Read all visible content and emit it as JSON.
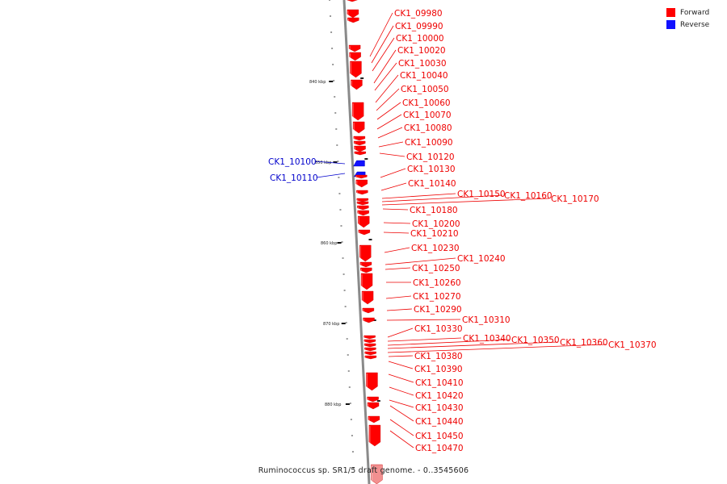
{
  "legend": [
    {
      "label": "Forward",
      "color": "#ff0000"
    },
    {
      "label": "Reverse",
      "color": "#1111ff"
    }
  ],
  "footer": {
    "text": "Ruminococcus sp. SR1/5 draft genome. - 0..3545606"
  },
  "ticks": [
    "840 kbp",
    "850 kbp",
    "860 kbp",
    "870 kbp",
    "880 kbp"
  ],
  "genes": [
    "CK1_09980",
    "CK1_09990",
    "CK1_10000",
    "CK1_10020",
    "CK1_10030",
    "CK1_10040",
    "CK1_10050",
    "CK1_10060",
    "CK1_10070",
    "CK1_10080",
    "CK1_10090",
    "CK1_10100",
    "CK1_10110",
    "CK1_10120",
    "CK1_10130",
    "CK1_10140",
    "CK1_10150",
    "CK1_10160",
    "CK1_10170",
    "CK1_10180",
    "CK1_10200",
    "CK1_10210",
    "CK1_10230",
    "CK1_10240",
    "CK1_10250",
    "CK1_10260",
    "CK1_10270",
    "CK1_10290",
    "CK1_10310",
    "CK1_10330",
    "CK1_10340",
    "CK1_10350",
    "CK1_10360",
    "CK1_10370",
    "CK1_10380",
    "CK1_10390",
    "CK1_10410",
    "CK1_10420",
    "CK1_10430",
    "CK1_10440",
    "CK1_10450",
    "CK1_10470"
  ],
  "colors": {
    "forward": "#ff0000",
    "reverse": "#1111ff",
    "backbone": "#888888"
  }
}
